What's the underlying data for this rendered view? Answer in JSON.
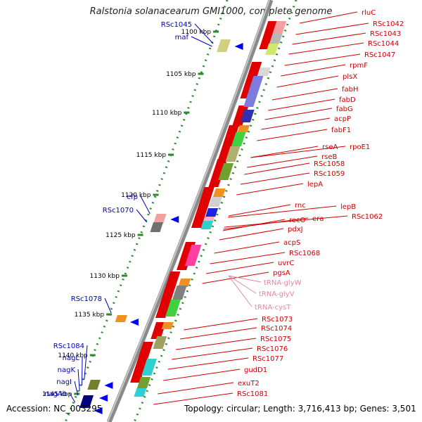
{
  "title": "Ralstonia solanacearum GMI1000, complete genome",
  "footer": {
    "accession_label": "Accession:",
    "accession": "NC_003295",
    "topology_label": "Topology:",
    "topology": "circular",
    "length_label": "Length:",
    "length": "3,716,413 bp",
    "genes_label": "Genes:",
    "genes": "3,501"
  },
  "colors": {
    "backbone": "#8a8a8a",
    "ticks": "#2f8a2f",
    "label_red": "#cc0000",
    "label_blue": "#0000bb",
    "label_pink": "#e08aa0"
  },
  "scale_ticks": [
    "1100 kbp",
    "1105 kbp",
    "1110 kbp",
    "1115 kbp",
    "1120 kbp",
    "1125 kbp",
    "1130 kbp",
    "1135 kbp",
    "1140 kbp",
    "1145 kbp"
  ],
  "reverse_labels": [
    "RSc1045",
    "maf",
    "efp",
    "RSc1070",
    "RSc1078",
    "RSc1084",
    "nagL",
    "nagK",
    "nagI",
    "nagAb"
  ],
  "forward_labels": [
    "rluC",
    "RSc1042",
    "RSc1043",
    "RSc1044",
    "RSc1047",
    "rpmF",
    "plsX",
    "fabH",
    "fabD",
    "fabG",
    "acpP",
    "fabF1",
    "rseA",
    "rpoE1",
    "rseB",
    "RSc1058",
    "RSc1059",
    "lepA",
    "lepB",
    "rnc",
    "RSc1062",
    "recO",
    "era",
    "pdxJ",
    "acpS",
    "RSc1068",
    "uvrC",
    "pgsA",
    "RSc1073",
    "RSc1074",
    "RSc1075",
    "RSc1076",
    "RSc1077",
    "gudD1",
    "exuT2",
    "RSc1081"
  ],
  "rna_labels": [
    "tRNA-glyW",
    "tRNA-glyV",
    "tRNA-cysT"
  ]
}
